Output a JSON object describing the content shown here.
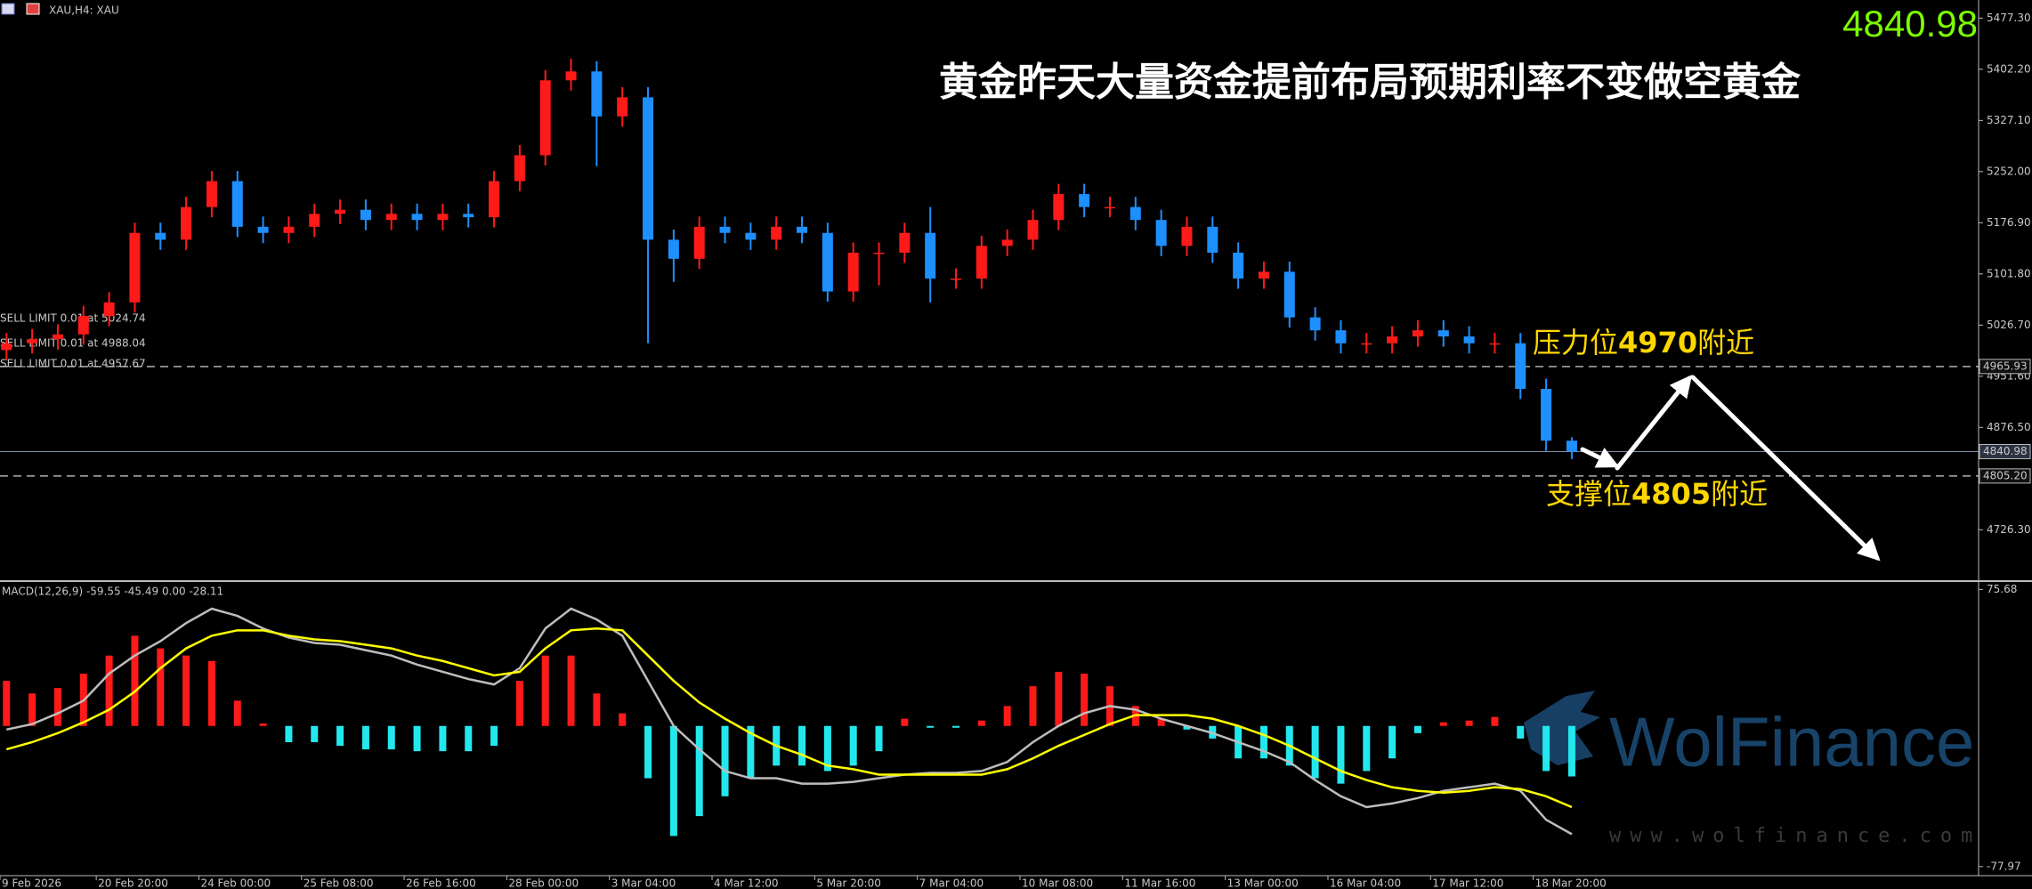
{
  "chart_data": [
    {
      "type": "candlestick",
      "header": "XAU,H4: XAU",
      "title": "黄金昨天大量资金提前布局预期利率不变做空黄金",
      "last_price_label": "4840.98",
      "categories": [
        "9 Feb 2026",
        null,
        null,
        null,
        "20 Feb 20:00",
        null,
        null,
        null,
        "24 Feb 00:00",
        null,
        null,
        null,
        "25 Feb 08:00",
        null,
        null,
        null,
        "26 Feb 16:00",
        null,
        null,
        null,
        "28 Feb 00:00",
        null,
        null,
        null,
        "3 Mar 04:00",
        null,
        null,
        null,
        "4 Mar 12:00",
        null,
        null,
        null,
        "5 Mar 20:00",
        null,
        null,
        null,
        "7 Mar 04:00",
        null,
        null,
        null,
        "10 Mar 08:00",
        null,
        null,
        null,
        "11 Mar 16:00",
        null,
        null,
        null,
        "13 Mar 00:00",
        null,
        null,
        null,
        "16 Mar 04:00",
        null,
        null,
        null,
        "17 Mar 12:00",
        null,
        null,
        null,
        "18 Mar 20:00",
        null
      ],
      "open": [
        4990,
        5000,
        5006,
        5013,
        5040,
        5060,
        5162,
        5152,
        5200,
        5238,
        5171,
        5162,
        5171,
        5190,
        5196,
        5181,
        5190,
        5181,
        5190,
        5185,
        5238,
        5276,
        5386,
        5399,
        5333,
        5361,
        5152,
        5124,
        5171,
        5162,
        5152,
        5171,
        5162,
        5076,
        5133,
        5133,
        5162,
        5095,
        5095,
        5143,
        5152,
        5181,
        5219,
        5200,
        5200,
        5181,
        5143,
        5171,
        5133,
        5095,
        5105,
        5038,
        5019,
        5000,
        5000,
        5010,
        5019,
        5010,
        5000,
        5000,
        4933,
        4857
      ],
      "high": [
        5015,
        5021,
        5028,
        5055,
        5075,
        5177,
        5177,
        5215,
        5253,
        5253,
        5186,
        5186,
        5205,
        5211,
        5211,
        5205,
        5205,
        5205,
        5205,
        5253,
        5291,
        5401,
        5418,
        5414,
        5376,
        5376,
        5167,
        5186,
        5186,
        5177,
        5186,
        5186,
        5177,
        5148,
        5148,
        5177,
        5200,
        5110,
        5158,
        5167,
        5196,
        5234,
        5234,
        5215,
        5215,
        5196,
        5186,
        5186,
        5148,
        5120,
        5120,
        5053,
        5034,
        5015,
        5025,
        5034,
        5034,
        5025,
        5015,
        5015,
        4948,
        4862
      ],
      "low": [
        4975,
        4985,
        4991,
        4998,
        5025,
        5045,
        5137,
        5137,
        5185,
        5156,
        5147,
        5147,
        5156,
        5175,
        5166,
        5166,
        5166,
        5166,
        5170,
        5170,
        5223,
        5261,
        5371,
        5260,
        5318,
        5000,
        5090,
        5109,
        5147,
        5137,
        5137,
        5147,
        5061,
        5061,
        5085,
        5118,
        5060,
        5080,
        5080,
        5128,
        5137,
        5166,
        5185,
        5185,
        5166,
        5128,
        5128,
        5118,
        5080,
        5080,
        5023,
        5004,
        4985,
        4985,
        4985,
        4995,
        4995,
        4985,
        4985,
        4918,
        4842,
        4830
      ],
      "close": [
        5000,
        5006,
        5013,
        5040,
        5060,
        5162,
        5152,
        5200,
        5238,
        5171,
        5162,
        5171,
        5190,
        5196,
        5181,
        5190,
        5181,
        5190,
        5185,
        5238,
        5276,
        5386,
        5399,
        5333,
        5361,
        5152,
        5124,
        5171,
        5162,
        5152,
        5171,
        5162,
        5076,
        5133,
        5133,
        5162,
        5095,
        5095,
        5143,
        5152,
        5181,
        5219,
        5200,
        5200,
        5181,
        5143,
        5171,
        5133,
        5095,
        5105,
        5038,
        5019,
        5000,
        5000,
        5010,
        5019,
        5010,
        5000,
        5000,
        4933,
        4857,
        4841
      ],
      "up_color": "#ff1a1a",
      "down_color": "#1e8fff",
      "ylim": [
        4652.2,
        5503.9
      ],
      "yticks": [
        {
          "value": 5477.3,
          "label": "5477.30"
        },
        {
          "value": 5402.2,
          "label": "5402.20"
        },
        {
          "value": 5327.1,
          "label": "5327.10"
        },
        {
          "value": 5252,
          "label": "5252.00"
        },
        {
          "value": 5176.9,
          "label": "5176.90"
        },
        {
          "value": 5101.8,
          "label": "5101.80"
        },
        {
          "value": 5026.7,
          "label": "5026.70"
        },
        {
          "value": 4951.6,
          "label": "4951.60"
        },
        {
          "value": 4876.5,
          "label": "4876.50"
        },
        {
          "value": 4726.3,
          "label": "4726.30"
        }
      ],
      "price_lines": [
        {
          "value": 4965.93,
          "style": "dashed"
        },
        {
          "value": 4840.98,
          "style": "solid"
        },
        {
          "value": {
            "value": 4805.2,
            "label": "4805.20"
          },
          "style": "dashed"
        }
      ],
      "orders": [
        {
          "label": "SELL LIMIT 0.01 at 5024.74",
          "value": 5024.74
        },
        {
          "label": "SELL LIMIT 0.01 at 4988.04",
          "value": 4988.04
        },
        {
          "label": "SELL LIMIT 0.01 at 4957.67",
          "value": 4957.67
        }
      ],
      "resistance_label": [
        "压力位",
        "4970",
        "附近"
      ],
      "support_label": [
        "支撑位",
        "4805",
        "附近"
      ],
      "watermark": "WolFinance",
      "watermark_url": "www.wolfinance.com"
    },
    {
      "type": "macd",
      "title": "MACD(12,26,9) -59.55 -45.49 0.00 -28.11",
      "ylim": [
        -83.0,
        79.3
      ],
      "yticks": [
        75.68,
        -77.97
      ],
      "histogram": {
        "values": [
          25,
          18,
          21,
          29,
          39,
          50,
          43,
          39,
          36,
          14,
          1.4,
          -9,
          -9,
          -11,
          -13,
          -13,
          -14,
          -14,
          -14,
          -11,
          25,
          39,
          39,
          18,
          7,
          -29,
          -61,
          -50,
          -39,
          -29,
          -22,
          -22,
          -25,
          -22,
          -14,
          4,
          -1,
          -1,
          3,
          11,
          22,
          30,
          29,
          22,
          11,
          4,
          -2,
          -7,
          -18,
          -18,
          -22,
          -29,
          -32,
          -25,
          -18,
          -4,
          2,
          3,
          5,
          -7,
          -25,
          -28
        ],
        "up_color": "#ff1a1a",
        "down_color": "#22e8ee"
      },
      "macd": {
        "values": [
          -2,
          1,
          7,
          14,
          29,
          39,
          47,
          57,
          65,
          61,
          54,
          49,
          46,
          45,
          42,
          39,
          34,
          30,
          26,
          23,
          32,
          54,
          65,
          59,
          50,
          25,
          0,
          -13,
          -25,
          -29,
          -29,
          -32,
          -32,
          -31,
          -29,
          -27,
          -26,
          -26,
          -25,
          -20,
          -9,
          0,
          7,
          11,
          9,
          4,
          0,
          -4,
          -9,
          -14,
          -20,
          -30,
          -39,
          -45,
          -43,
          -40,
          -36,
          -34,
          -32,
          -36,
          -52,
          -60
        ],
        "color": "#bdbdbd"
      },
      "signal": {
        "values": [
          -13,
          -9,
          -4,
          2,
          9,
          19,
          32,
          43,
          50,
          53,
          53,
          50,
          48,
          47,
          45,
          43,
          39,
          36,
          32,
          28,
          30,
          43,
          53,
          54,
          53,
          39,
          25,
          13,
          4,
          -4,
          -11,
          -16,
          -22,
          -24,
          -27,
          -27,
          -27,
          -27,
          -27,
          -24,
          -18,
          -11,
          -5,
          1,
          6,
          6,
          6,
          4,
          0,
          -5,
          -11,
          -18,
          -25,
          -30,
          -34,
          -36,
          -37,
          -36,
          -34,
          -35,
          -39,
          -45
        ],
        "color": "#ffff00"
      }
    }
  ]
}
